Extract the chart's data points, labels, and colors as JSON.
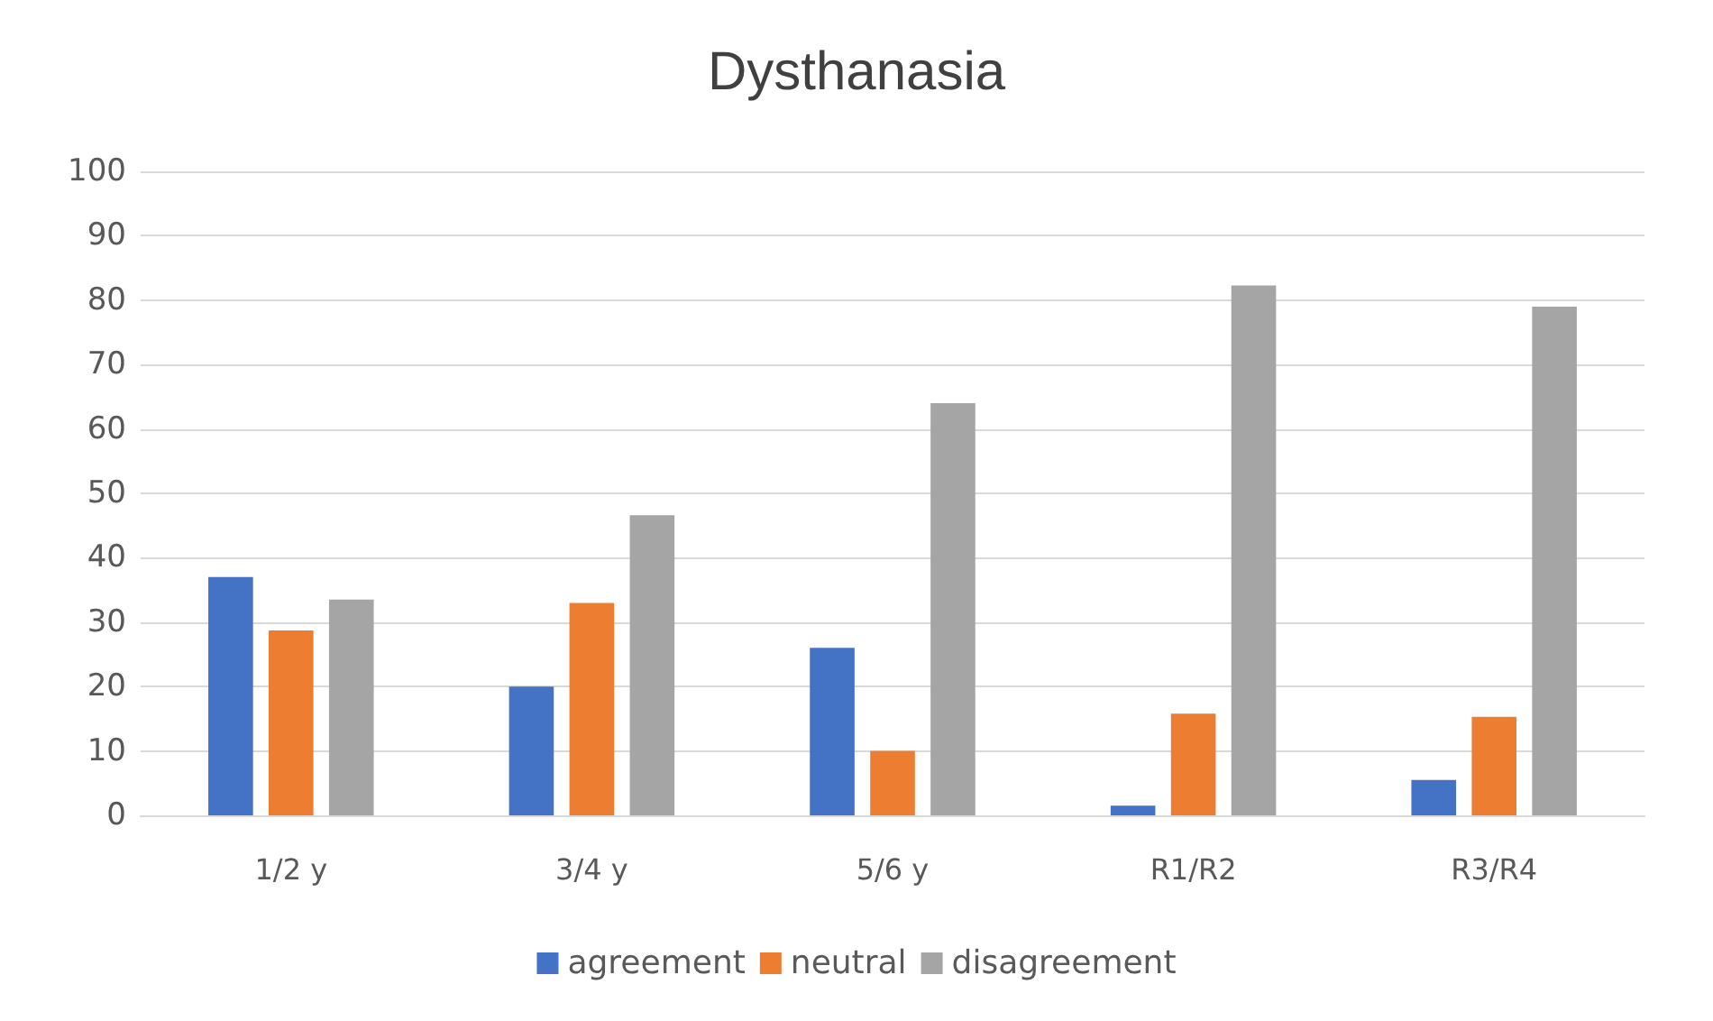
{
  "chart_data": {
    "type": "bar",
    "title": "Dysthanasia",
    "categories": [
      "1/2 y",
      "3/4 y",
      "5/6 y",
      "R1/R2",
      "R3/R4"
    ],
    "series": [
      {
        "name": "agreement",
        "color": "#4472c4",
        "values": [
          37,
          20,
          26,
          1.5,
          5.5
        ]
      },
      {
        "name": "neutral",
        "color": "#ed7d31",
        "values": [
          28.7,
          33,
          10,
          15.8,
          15.3
        ]
      },
      {
        "name": "disagreement",
        "color": "#a5a5a5",
        "values": [
          33.5,
          46.6,
          64,
          82.3,
          79
        ]
      }
    ],
    "ylim": [
      0,
      100
    ],
    "yticks": [
      0,
      10,
      20,
      30,
      40,
      50,
      60,
      70,
      80,
      90,
      100
    ],
    "grid": "y",
    "legend": "bottom"
  }
}
